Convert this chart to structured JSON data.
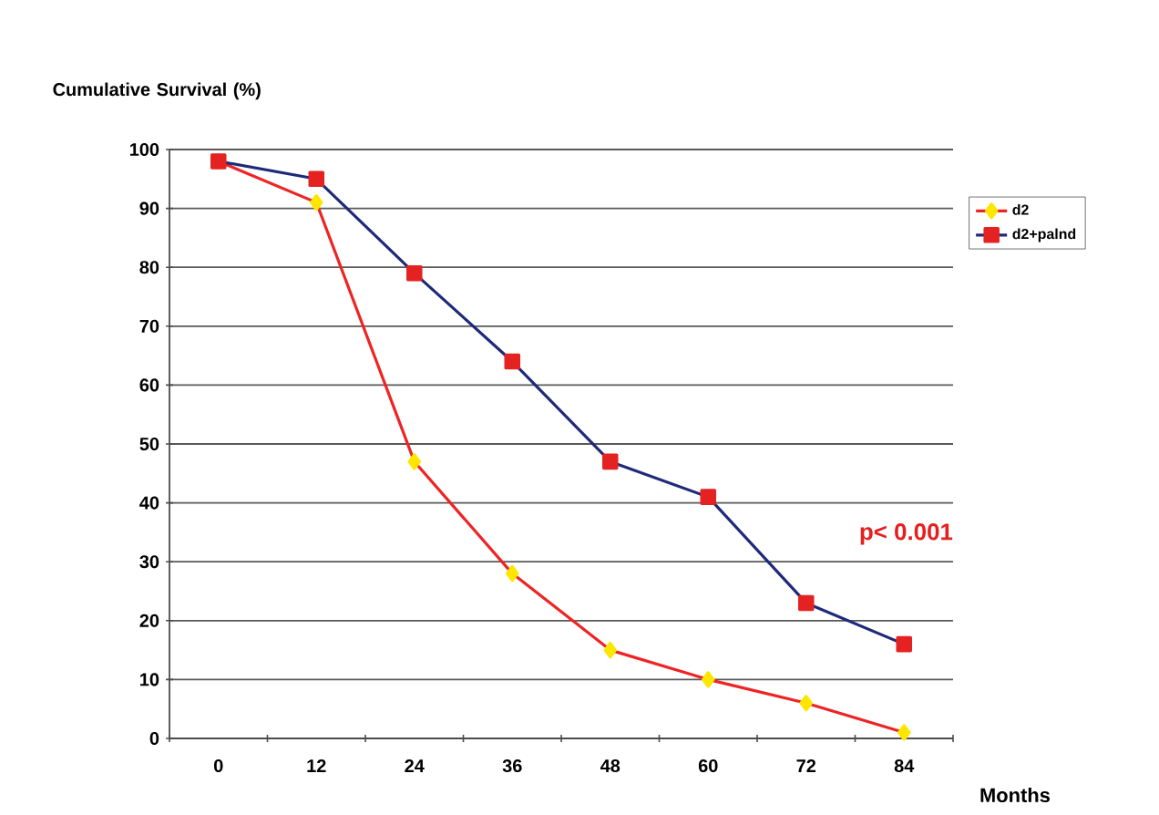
{
  "chart_data": {
    "type": "line",
    "ylabel": "Cumulative Survival (%)",
    "xlabel": "Months",
    "categories": [
      "0",
      "12",
      "24",
      "36",
      "48",
      "60",
      "72",
      "84"
    ],
    "series": [
      {
        "name": "d2",
        "color": "#ee2424",
        "marker": "diamond",
        "colors": [
          "#ffe600",
          "#ffe600",
          "#ffe600",
          "#ffe600",
          "#ffe600",
          "#ffe600",
          "#ffe600",
          "#ffe600"
        ],
        "values": [
          98,
          91,
          47,
          28,
          15,
          10,
          6,
          1
        ]
      },
      {
        "name": "d2+palnd",
        "color": "#1f2a78",
        "marker": "square",
        "colors": [
          "#e52222",
          "#e52222",
          "#e52222",
          "#e52222",
          "#e52222",
          "#e52222",
          "#e52222",
          "#e52222"
        ],
        "values": [
          98,
          95,
          79,
          64,
          47,
          41,
          23,
          16
        ]
      }
    ],
    "ylim": [
      0,
      100
    ],
    "yticks": [
      0,
      10,
      20,
      30,
      40,
      50,
      60,
      70,
      80,
      90,
      100
    ],
    "grid": "y",
    "legend": "right",
    "line_style": "solid",
    "annotations": [
      "p< 0.001"
    ]
  }
}
